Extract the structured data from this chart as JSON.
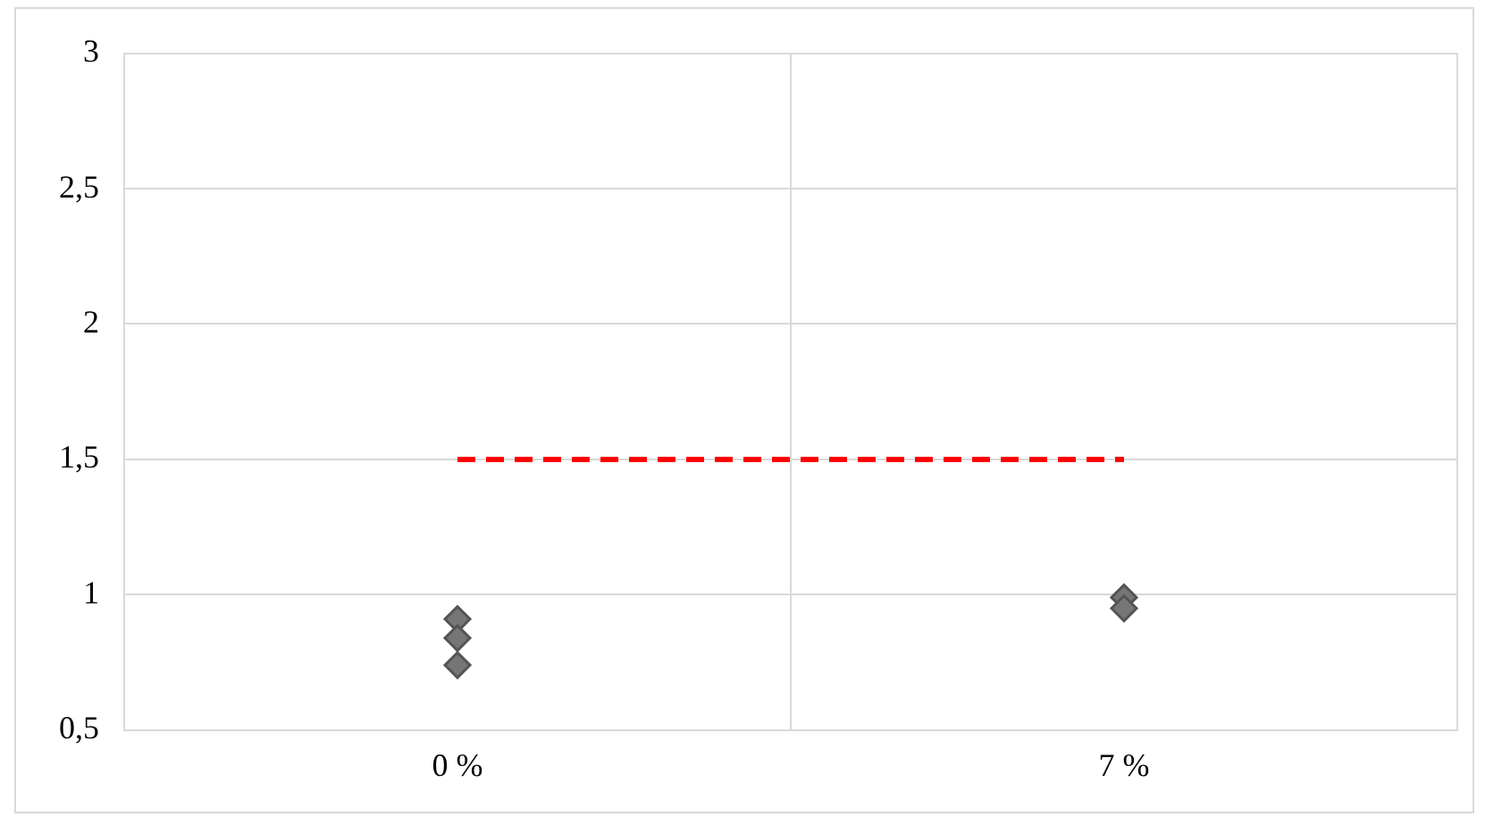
{
  "chart_data": {
    "type": "scatter",
    "categories": [
      "0 %",
      "7 %"
    ],
    "series": [
      {
        "x": [
          "0 %",
          "0 %",
          "0 %",
          "7 %",
          "7 %"
        ],
        "values": [
          0.91,
          0.84,
          0.74,
          0.99,
          0.95
        ],
        "color": "#767676",
        "marker": "diamond"
      },
      {
        "type": "line",
        "values": [
          1.5,
          1.5
        ],
        "color": "#ff0000",
        "line_style": "dashed",
        "marker": "none"
      }
    ],
    "ylim": [
      0.5,
      3
    ],
    "yticks": [
      {
        "value": 0.5,
        "label": "0,5"
      },
      1,
      {
        "value": 1.5,
        "label": "1,5"
      },
      2,
      {
        "value": 2.5,
        "label": "2,5"
      },
      3
    ],
    "grid": true,
    "legend": false
  }
}
